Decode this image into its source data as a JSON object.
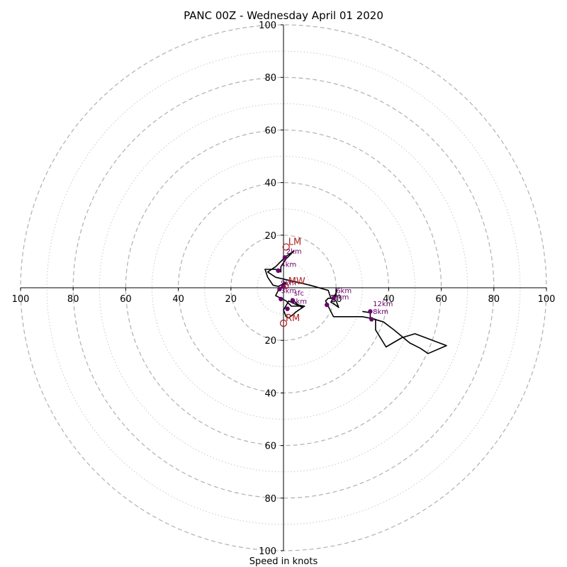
{
  "chart_data": {
    "type": "line",
    "title": "PANC 00Z - Wednesday April 01 2020",
    "xlabel": "Speed in knots",
    "xlim": [
      -100,
      100
    ],
    "ylim": [
      -100,
      100
    ],
    "major_rings": [
      20,
      40,
      60,
      80,
      100
    ],
    "minor_rings": [
      10,
      30,
      50,
      70,
      90
    ],
    "x_tick_labels": [
      "100",
      "80",
      "60",
      "40",
      "20",
      "20",
      "40",
      "60",
      "80",
      "100"
    ],
    "y_tick_labels": [
      "100",
      "80",
      "60",
      "40",
      "20",
      "20",
      "40",
      "60",
      "80",
      "100"
    ],
    "grid": true,
    "colors": {
      "trace": "#000000",
      "height_marker": "#6b006b",
      "storm_motion": "#b22222",
      "major_ring": "#b0b0b0",
      "minor_ring": "#c8c8c8",
      "axes": "#000000"
    },
    "series": [
      {
        "points": [
          [
            3,
            -4
          ],
          [
            4,
            -5
          ],
          [
            5,
            -6
          ],
          [
            7,
            -7.5
          ],
          [
            8,
            -7
          ],
          [
            5,
            -6.5
          ],
          [
            2,
            -5
          ],
          [
            0,
            -8.5
          ],
          [
            1,
            -11
          ],
          [
            2,
            -11.5
          ],
          [
            5,
            -9
          ],
          [
            8,
            -7
          ],
          [
            3,
            -7
          ],
          [
            1,
            -5
          ],
          [
            -1,
            -4
          ],
          [
            -3,
            -3
          ],
          [
            -2,
            -1
          ],
          [
            -1,
            0
          ],
          [
            0,
            1
          ],
          [
            1,
            2
          ],
          [
            -2,
            0.5
          ],
          [
            -4,
            1
          ],
          [
            -6,
            4
          ],
          [
            -7,
            7
          ],
          [
            -3,
            7
          ],
          [
            -1,
            6
          ],
          [
            -1,
            8
          ],
          [
            1,
            11
          ],
          [
            4,
            14
          ],
          [
            1,
            12
          ],
          [
            -3,
            8
          ],
          [
            -6,
            6
          ],
          [
            -3,
            4
          ],
          [
            10,
            1
          ],
          [
            17,
            -1
          ],
          [
            18,
            -4
          ],
          [
            20,
            -5
          ],
          [
            21,
            -7.5
          ],
          [
            19,
            -6
          ],
          [
            18,
            -5.5
          ],
          [
            20,
            -2
          ],
          [
            20,
            -0.5
          ],
          [
            20,
            -3
          ],
          [
            19,
            -4
          ],
          [
            17,
            -4
          ],
          [
            16,
            -5
          ],
          [
            19,
            -11
          ],
          [
            30,
            -11
          ],
          [
            35,
            -12
          ],
          [
            35,
            -16
          ],
          [
            39,
            -22.5
          ],
          [
            45,
            -19
          ],
          [
            50,
            -17.5
          ],
          [
            62,
            -22
          ],
          [
            55,
            -25
          ],
          [
            52,
            -23
          ],
          [
            48,
            -21
          ],
          [
            42,
            -16
          ],
          [
            38,
            -13
          ],
          [
            33,
            -11.5
          ],
          [
            33,
            -9.5
          ],
          [
            30,
            -9
          ]
        ]
      }
    ],
    "height_markers": [
      {
        "label": "sfc",
        "x": 3.5,
        "y": -4.8
      },
      {
        "label": "1km",
        "x": -1,
        "y": -4.3
      },
      {
        "label": "2km",
        "x": 16.5,
        "y": -6.5
      },
      {
        "label": "3km",
        "x": 1.5,
        "y": -8
      },
      {
        "label": "4km",
        "x": -2,
        "y": 6.5
      },
      {
        "label": "5km",
        "x": -1.5,
        "y": -0.5
      },
      {
        "label": "6km",
        "x": 19,
        "y": -4
      },
      {
        "label": "8km",
        "x": 33.5,
        "y": -12
      },
      {
        "label": "9km",
        "x": 0,
        "y": 0.5
      },
      {
        "label": "12km",
        "x": 33,
        "y": -9
      },
      {
        "label": "12km",
        "x": 0.5,
        "y": 11.5
      }
    ],
    "storm_motion": [
      {
        "label": "LM",
        "x": 1,
        "y": 15.5
      },
      {
        "label": "MW",
        "x": 1,
        "y": 0.5
      },
      {
        "label": "RM",
        "x": 0,
        "y": -13.5
      }
    ],
    "label_overrides": {
      "marker_texts": [
        {
          "text": "2km",
          "x": 1,
          "y": 13
        },
        {
          "text": "4km",
          "x": -1,
          "y": 8
        },
        {
          "text": "9km",
          "x": -1,
          "y": 1
        },
        {
          "text": "3km",
          "x": -1,
          "y": -2
        },
        {
          "text": "sfc",
          "x": 4,
          "y": -3
        },
        {
          "text": "1km",
          "x": 3,
          "y": -6
        },
        {
          "text": "6km",
          "x": 20,
          "y": -2
        },
        {
          "text": "2km",
          "x": 19,
          "y": -4.5
        },
        {
          "text": "12km",
          "x": 34,
          "y": -7
        },
        {
          "text": "8km",
          "x": 34,
          "y": -10
        }
      ]
    }
  }
}
